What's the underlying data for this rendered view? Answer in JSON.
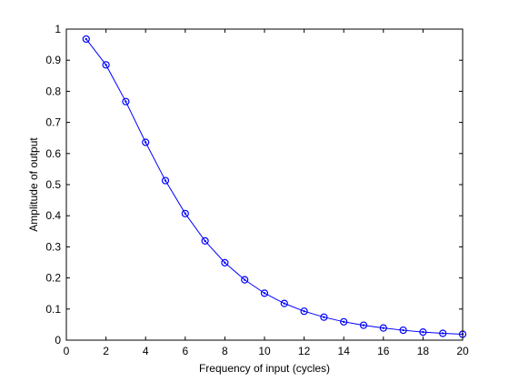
{
  "chart_data": {
    "type": "line",
    "title": "",
    "xlabel": "Frequency of input (cycles)",
    "ylabel": "Amplitude of output",
    "xlim": [
      0,
      20
    ],
    "ylim": [
      0,
      1
    ],
    "grid": false,
    "x_ticks": [
      0,
      2,
      4,
      6,
      8,
      10,
      12,
      14,
      16,
      18,
      20
    ],
    "y_ticks": [
      0,
      0.1,
      0.2,
      0.3,
      0.4,
      0.5,
      0.6,
      0.7,
      0.8,
      0.9,
      1
    ],
    "x_tick_labels": [
      "0",
      "2",
      "4",
      "6",
      "8",
      "10",
      "12",
      "14",
      "16",
      "18",
      "20"
    ],
    "y_tick_labels": [
      "0",
      "0.1",
      "0.2",
      "0.3",
      "0.4",
      "0.5",
      "0.6",
      "0.7",
      "0.8",
      "0.9",
      "1"
    ],
    "series": [
      {
        "color": "#0000ff",
        "marker": "circle-dot",
        "x": [
          1,
          2,
          3,
          4,
          5,
          6,
          7,
          8,
          9,
          10,
          11,
          12,
          13,
          14,
          15,
          16,
          17,
          18,
          19,
          20
        ],
        "y": [
          0.968,
          0.885,
          0.767,
          0.636,
          0.513,
          0.407,
          0.319,
          0.249,
          0.194,
          0.151,
          0.118,
          0.093,
          0.074,
          0.059,
          0.048,
          0.039,
          0.032,
          0.026,
          0.022,
          0.019
        ]
      }
    ]
  }
}
